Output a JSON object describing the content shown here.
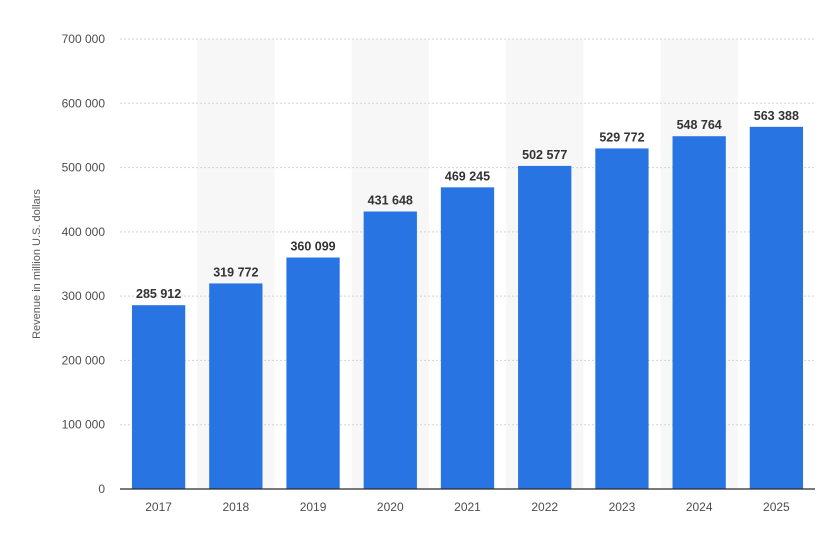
{
  "chart_data": {
    "type": "bar",
    "categories": [
      "2017",
      "2018",
      "2019",
      "2020",
      "2021",
      "2022",
      "2023",
      "2024",
      "2025"
    ],
    "values": [
      285912,
      319772,
      360099,
      431648,
      469245,
      502577,
      529772,
      548764,
      563388
    ],
    "value_labels": [
      "285 912",
      "319 772",
      "360 099",
      "431 648",
      "469 245",
      "502 577",
      "529 772",
      "548 764",
      "563 388"
    ],
    "title": "",
    "xlabel": "",
    "ylabel": "Revenue in million U.S. dollars",
    "ylim": [
      0,
      700000
    ],
    "yticks": [
      0,
      100000,
      200000,
      300000,
      400000,
      500000,
      600000,
      700000
    ],
    "ytick_labels": [
      "0",
      "100 000",
      "200 000",
      "300 000",
      "400 000",
      "500 000",
      "600 000",
      "700 000"
    ],
    "grid": true,
    "legend": "none",
    "colors": {
      "bar": "#2874e2",
      "band": "#f7f7f7"
    }
  }
}
